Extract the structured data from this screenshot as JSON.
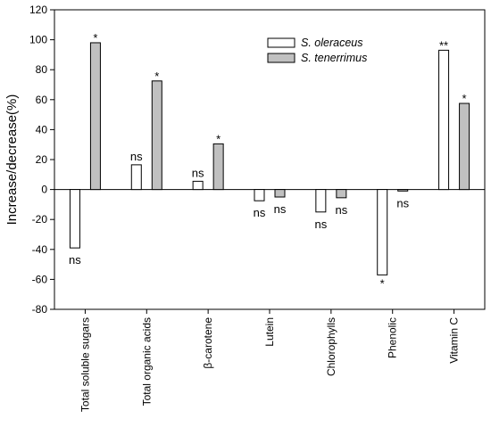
{
  "chart_data": {
    "type": "bar",
    "ylabel": "Increase/decrease(%)",
    "xlabel": "",
    "ylim": [
      -80,
      120
    ],
    "y_ticks": [
      -80,
      -60,
      -40,
      -20,
      0,
      20,
      40,
      60,
      80,
      100,
      120
    ],
    "grid": false,
    "legend_position": "top-right",
    "categories": [
      "Total soluble sugars",
      "Total organic acids",
      "β-carotene",
      "Lutein",
      "Chlorophylls",
      "Phenolic",
      "Vitamin C"
    ],
    "series": [
      {
        "name": "S. oleraceus",
        "color": "#ffffff",
        "values": [
          -39,
          16.5,
          5.5,
          -7.5,
          -15,
          -57,
          93
        ],
        "significance": [
          "ns",
          "ns",
          "ns",
          "ns",
          "ns",
          "*",
          "**"
        ]
      },
      {
        "name": "S. tenerrimus",
        "color": "#c0c0c0",
        "values": [
          98,
          72.5,
          30.5,
          -5,
          -5.5,
          -1,
          57.5
        ],
        "significance": [
          "*",
          "*",
          "*",
          "ns",
          "ns",
          "ns",
          "*"
        ]
      }
    ]
  }
}
